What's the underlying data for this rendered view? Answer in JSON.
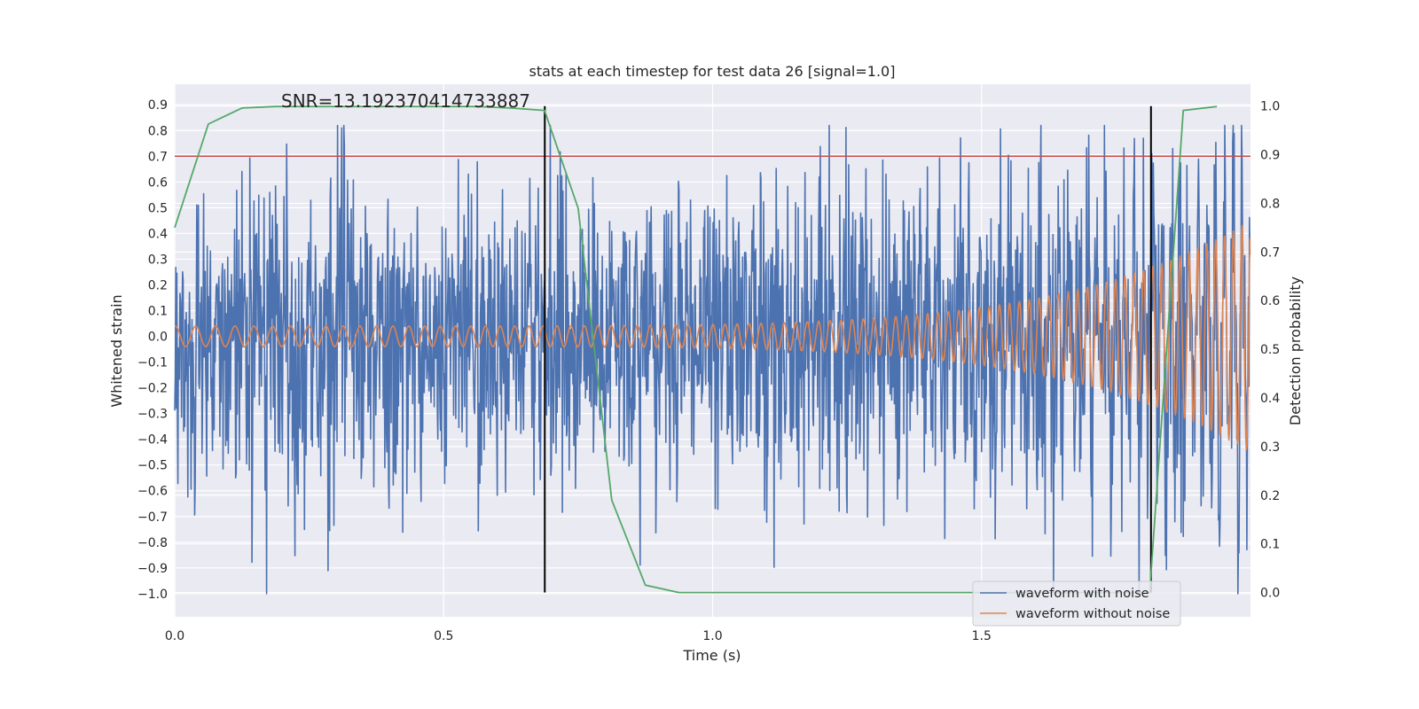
{
  "chart_data": {
    "type": "line",
    "title": "stats at each timestep for test data 26 [signal=1.0]",
    "annotation": "SNR=13.192370414733887",
    "xlabel": "Time (s)",
    "ylabel_left": "Whitened strain",
    "ylabel_right": "Detection probability",
    "xlim": [
      0.0,
      2.0
    ],
    "ylim_left": [
      -1.09,
      0.98
    ],
    "ylim_right": [
      -0.05,
      1.045
    ],
    "x_ticks": [
      "0.0",
      "0.5",
      "1.0",
      "1.5"
    ],
    "x_tick_values": [
      0.0,
      0.5,
      1.0,
      1.5
    ],
    "y_ticks_left": [
      "0.9",
      "0.8",
      "0.7",
      "0.6",
      "0.5",
      "0.4",
      "0.3",
      "0.2",
      "0.1",
      "0.0",
      "−0.1",
      "−0.2",
      "−0.3",
      "−0.4",
      "−0.5",
      "−0.6",
      "−0.7",
      "−0.8",
      "−0.9",
      "−1.0"
    ],
    "y_tick_values_left": [
      0.9,
      0.8,
      0.7,
      0.6,
      0.5,
      0.4,
      0.3,
      0.2,
      0.1,
      0.0,
      -0.1,
      -0.2,
      -0.3,
      -0.4,
      -0.5,
      -0.6,
      -0.7,
      -0.8,
      -0.9,
      -1.0
    ],
    "y_ticks_right": [
      "1.0",
      "0.9",
      "0.8",
      "0.7",
      "0.6",
      "0.5",
      "0.4",
      "0.3",
      "0.2",
      "0.1",
      "0.0"
    ],
    "y_tick_values_right": [
      1.0,
      0.9,
      0.8,
      0.7,
      0.6,
      0.5,
      0.4,
      0.3,
      0.2,
      0.1,
      0.0
    ],
    "threshold": {
      "value": 0.7,
      "color": "#c44e52"
    },
    "vertical_markers": [
      0.688,
      1.815
    ],
    "legend": {
      "location": "lower-right",
      "entries": [
        "waveform with noise",
        "waveform without noise"
      ]
    },
    "series": [
      {
        "name": "waveform with noise",
        "axis": "left",
        "color": "#4c72b0",
        "kind": "noise",
        "approx_std": 0.3,
        "approx_range": [
          -1.0,
          0.82
        ],
        "n_samples": 2048
      },
      {
        "name": "waveform without noise",
        "axis": "left",
        "color": "#dd8452",
        "kind": "chirp",
        "amplitude_start": 0.04,
        "amplitude_end": 0.45,
        "cycles_per_second_start": 26,
        "cycles_per_second_end": 62
      },
      {
        "name": "detection probability",
        "axis": "right",
        "color": "#55a868",
        "x": [
          0.0,
          0.0625,
          0.125,
          0.1875,
          0.25,
          0.3125,
          0.375,
          0.4375,
          0.5,
          0.5625,
          0.625,
          0.6875,
          0.75,
          0.8125,
          0.875,
          0.9375,
          1.0,
          1.0625,
          1.125,
          1.1875,
          1.25,
          1.3125,
          1.375,
          1.4375,
          1.5,
          1.5625,
          1.625,
          1.6875,
          1.75,
          1.8125,
          1.875,
          1.9375
        ],
        "y": [
          0.75,
          0.963,
          0.996,
          0.999,
          0.999,
          0.999,
          0.999,
          0.999,
          0.999,
          0.999,
          0.996,
          0.991,
          0.79,
          0.19,
          0.015,
          0.0,
          0.0,
          0.0,
          0.0,
          0.0,
          0.0,
          0.0,
          0.0,
          0.0,
          0.0,
          0.0,
          0.0,
          0.0,
          0.0,
          0.0,
          0.991,
          0.999
        ]
      }
    ]
  }
}
